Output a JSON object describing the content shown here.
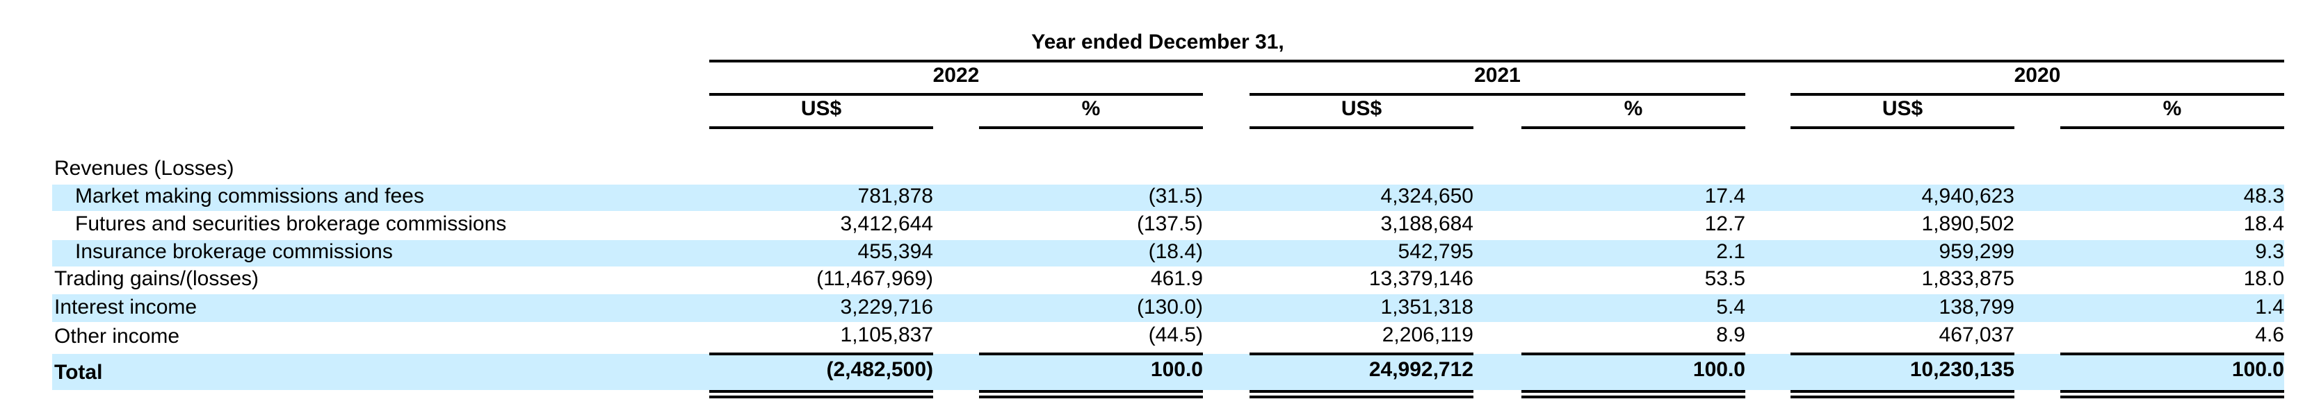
{
  "header": {
    "period": "Year ended December 31,",
    "years": [
      "2022",
      "2021",
      "2020"
    ],
    "currency_col": "US$",
    "percent_col": "%"
  },
  "section": "Revenues (Losses)",
  "rows": [
    {
      "label": "Market making commissions and fees",
      "values": [
        "781,878",
        "(31.5)",
        "4,324,650",
        "17.4",
        "4,940,623",
        "48.3"
      ]
    },
    {
      "label": "Futures and securities brokerage commissions",
      "values": [
        "3,412,644",
        "(137.5)",
        "3,188,684",
        "12.7",
        "1,890,502",
        "18.4"
      ]
    },
    {
      "label": "Insurance brokerage commissions",
      "values": [
        "455,394",
        "(18.4)",
        "542,795",
        "2.1",
        "959,299",
        "9.3"
      ]
    },
    {
      "label": "Trading gains/(losses)",
      "values": [
        "(11,467,969)",
        "461.9",
        "13,379,146",
        "53.5",
        "1,833,875",
        "18.0"
      ]
    },
    {
      "label": "Interest income",
      "values": [
        "3,229,716",
        "(130.0)",
        "1,351,318",
        "5.4",
        "138,799",
        "1.4"
      ]
    },
    {
      "label": "Other income",
      "values": [
        "1,105,837",
        "(44.5)",
        "2,206,119",
        "8.9",
        "467,037",
        "4.6"
      ]
    }
  ],
  "total": {
    "label": "Total",
    "values": [
      "(2,482,500)",
      "100.0",
      "24,992,712",
      "100.0",
      "10,230,135",
      "100.0"
    ]
  },
  "colors": {
    "band": "#cceeff"
  }
}
